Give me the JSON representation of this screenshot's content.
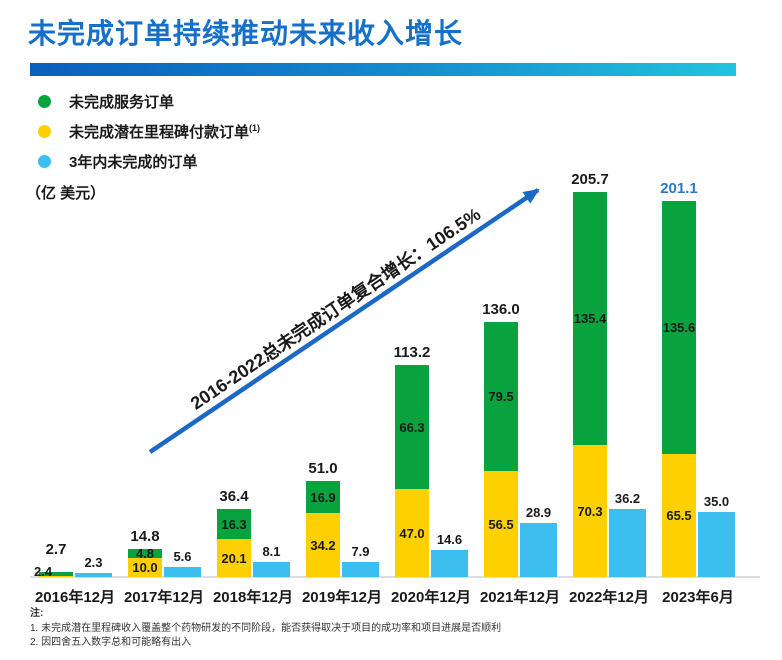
{
  "title": "未完成订单持续推动未来收入增长",
  "unit_label": "（亿 美元）",
  "legend": {
    "items": [
      {
        "label": "未完成服务订单",
        "sup": "",
        "color": "#08A33F"
      },
      {
        "label": "未完成潜在里程碑付款订单",
        "sup": "(1)",
        "color": "#FFD000"
      },
      {
        "label": "3年内未完成的订单",
        "sup": "",
        "color": "#3CBEEE"
      }
    ]
  },
  "annotation": {
    "text": "2016-2022总未完成订单复合增长：106.5%",
    "arrow_color": "#1C68C5"
  },
  "chart_data": {
    "type": "bar",
    "stacked": true,
    "title": "未完成订单持续推动未来收入增长",
    "ylabel": "（亿 美元）",
    "ylim": [
      0,
      210
    ],
    "grid": false,
    "legend_position": "top-left",
    "categories": [
      "2016年12月",
      "2017年12月",
      "2018年12月",
      "2019年12月",
      "2020年12月",
      "2021年12月",
      "2022年12月",
      "2023年6月"
    ],
    "series": [
      {
        "name": "未完成服务订单",
        "color": "#08A33F",
        "stack": "backlog",
        "values": [
          2.4,
          4.8,
          16.3,
          16.9,
          66.3,
          79.5,
          135.4,
          135.6
        ],
        "labels": [
          "2.4",
          "4.8",
          "16.3",
          "16.9",
          "66.3",
          "79.5",
          "135.4",
          "135.6"
        ]
      },
      {
        "name": "未完成潜在里程碑付款订单",
        "color": "#FFD000",
        "stack": "backlog",
        "values": [
          0.3,
          10.0,
          20.1,
          34.2,
          47.0,
          56.5,
          70.3,
          65.5
        ],
        "labels": [
          "",
          "10.0",
          "20.1",
          "34.2",
          "47.0",
          "56.5",
          "70.3",
          "65.5"
        ]
      },
      {
        "name": "3年内未完成的订单",
        "color": "#3CBEEE",
        "stack": "separate",
        "values": [
          2.3,
          5.6,
          8.1,
          7.9,
          14.6,
          28.9,
          36.2,
          35.0
        ],
        "labels": [
          "2.3",
          "5.6",
          "8.1",
          "7.9",
          "14.6",
          "28.9",
          "36.2",
          "35.0"
        ]
      }
    ],
    "totals": [
      2.7,
      14.8,
      36.4,
      51.0,
      113.2,
      136.0,
      205.7,
      201.1
    ],
    "total_labels": [
      "2.7",
      "14.8",
      "36.4",
      "51.0",
      "113.2",
      "136.0",
      "205.7",
      "201.1"
    ],
    "total_label_colors": [
      "#1a1a1a",
      "#1a1a1a",
      "#1a1a1a",
      "#1a1a1a",
      "#1a1a1a",
      "#1a1a1a",
      "#1a1a1a",
      "#2E78C3"
    ],
    "annotation": "2016-2022总未完成订单复合增长：106.5%"
  },
  "notes": {
    "header": "注:",
    "items": [
      "1. 未完成潜在里程碑收入覆盖整个药物研发的不同阶段，能否获得取决于项目的成功率和项目进展是否顺利",
      "2. 因四舍五入数字总和可能略有出入"
    ]
  }
}
